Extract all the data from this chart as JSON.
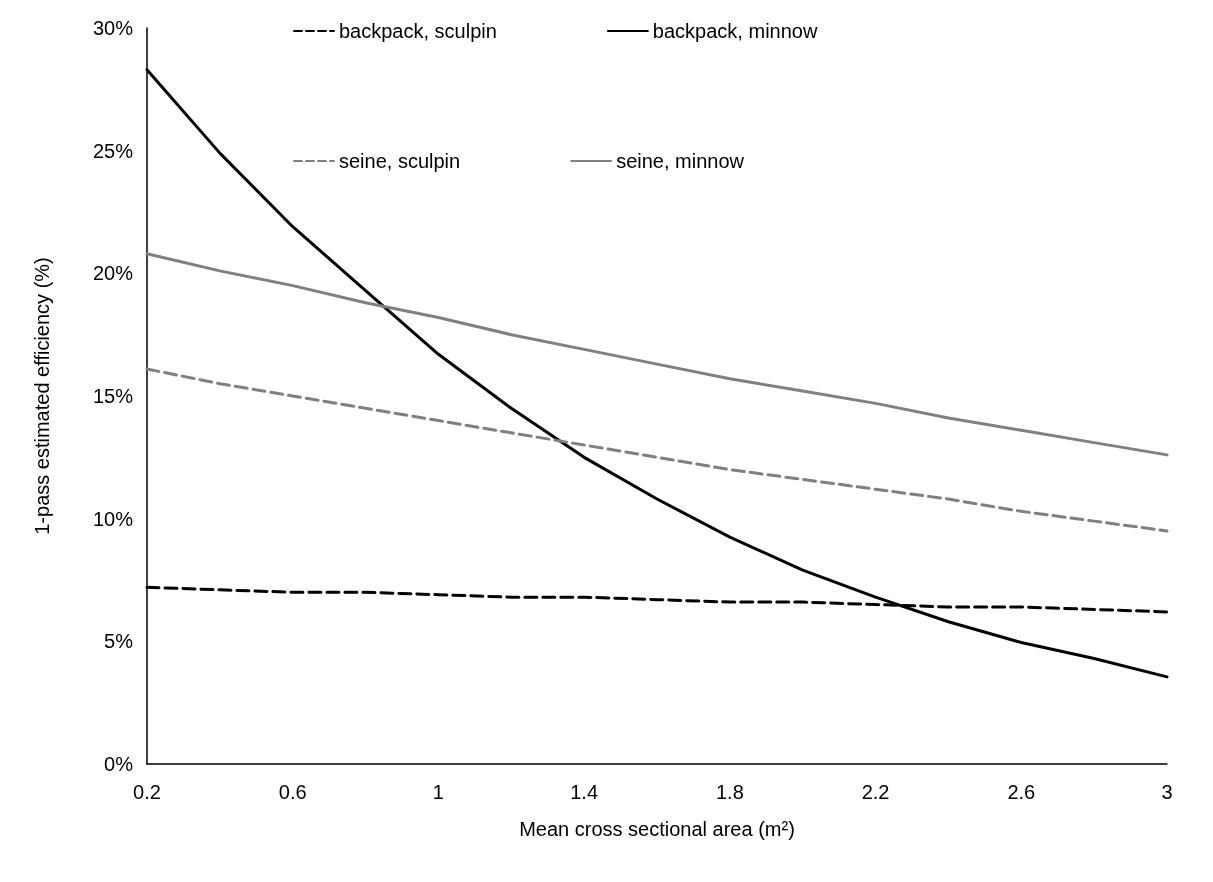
{
  "chart_data": {
    "type": "line",
    "xlabel": "Mean cross sectional area (m²)",
    "ylabel": "1-pass estimated efficiency (%)",
    "x": [
      0.2,
      0.4,
      0.6,
      0.8,
      1.0,
      1.2,
      1.4,
      1.6,
      1.8,
      2.0,
      2.2,
      2.4,
      2.6,
      2.8,
      3.0
    ],
    "xlim": [
      0.2,
      3
    ],
    "xticks": [
      0.2,
      0.6,
      1,
      1.4,
      1.8,
      2.2,
      2.6,
      3
    ],
    "ylim": [
      0,
      30
    ],
    "yticks": [
      {
        "value": 0,
        "label": "0%"
      },
      {
        "value": 5,
        "label": "5%"
      },
      {
        "value": 10,
        "label": "10%"
      },
      {
        "value": 15,
        "label": "15%"
      },
      {
        "value": 20,
        "label": "20%"
      },
      {
        "value": 25,
        "label": "25%"
      },
      {
        "value": 30,
        "label": "30%"
      }
    ],
    "grid": false,
    "legend": "top",
    "marker": "none",
    "series": [
      {
        "name": "backpack, sculpin",
        "color": "#000000",
        "line_style": "dashed",
        "values": [
          7.2,
          7.1,
          7.0,
          7.0,
          6.9,
          6.8,
          6.8,
          6.7,
          6.6,
          6.6,
          6.5,
          6.4,
          6.4,
          6.3,
          6.2
        ]
      },
      {
        "name": "backpack, minnow",
        "color": "#000000",
        "line_style": "solid",
        "values": [
          28.3,
          24.9,
          21.9,
          19.3,
          16.7,
          14.5,
          12.5,
          10.8,
          9.25,
          7.9,
          6.8,
          5.8,
          4.95,
          4.3,
          3.55
        ]
      },
      {
        "name": "seine, sculpin",
        "color": "#808080",
        "line_style": "dashed",
        "values": [
          16.1,
          15.5,
          15.0,
          14.5,
          14.0,
          13.5,
          13.0,
          12.5,
          12.0,
          11.6,
          11.2,
          10.8,
          10.3,
          9.9,
          9.5
        ]
      },
      {
        "name": "seine, minnow",
        "color": "#808080",
        "line_style": "solid",
        "values": [
          20.8,
          20.1,
          19.5,
          18.8,
          18.2,
          17.5,
          16.9,
          16.3,
          15.7,
          15.2,
          14.7,
          14.1,
          13.6,
          13.1,
          12.6
        ]
      }
    ]
  }
}
